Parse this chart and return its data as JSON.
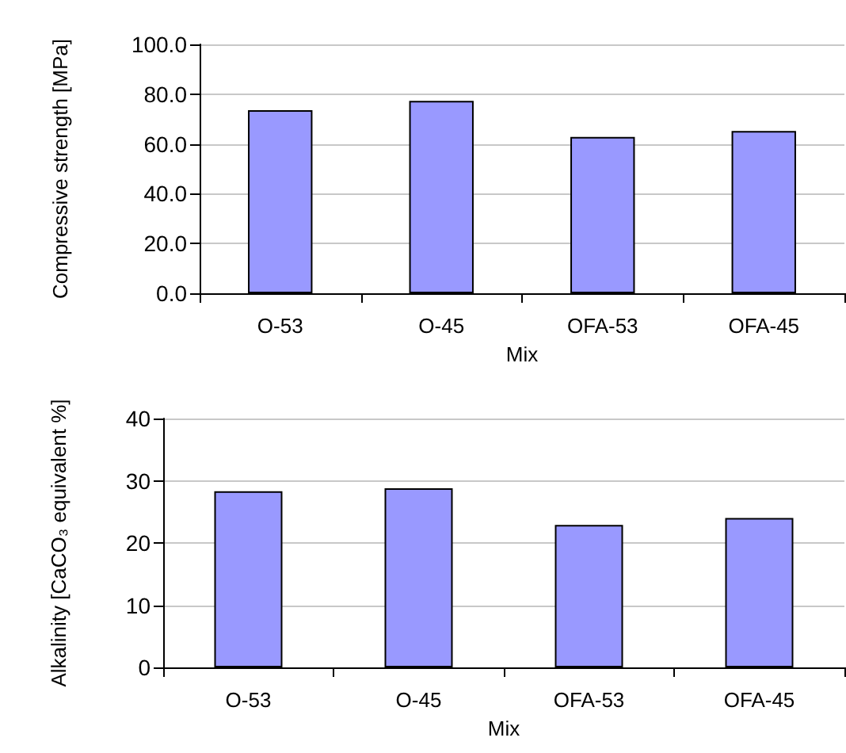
{
  "chart_data": [
    {
      "type": "bar",
      "categories": [
        "O-53",
        "O-45",
        "OFA-53",
        "OFA-45"
      ],
      "xlabel": "Mix",
      "ylabel": "Compressive strength [MPa]",
      "values": [
        73.6,
        77.3,
        62.8,
        65.2
      ],
      "color": "#9999ff",
      "ylim": [
        0,
        100
      ],
      "yticks": [
        {
          "value": 0,
          "label": "0.0"
        },
        {
          "value": 20,
          "label": "20.0"
        },
        {
          "value": 40,
          "label": "40.0"
        },
        {
          "value": 60,
          "label": "60.0"
        },
        {
          "value": 80,
          "label": "80.0"
        },
        {
          "value": 100,
          "label": "100.0"
        }
      ],
      "grid": "y"
    },
    {
      "type": "bar",
      "categories": [
        "O-53",
        "O-45",
        "OFA-53",
        "OFA-45"
      ],
      "xlabel": "Mix",
      "ylabel": "Alkalinity [CaCO₃ equivalent %]",
      "values": [
        28.3,
        28.8,
        22.9,
        24.0
      ],
      "color": "#9999ff",
      "ylim": [
        0,
        40
      ],
      "yticks": [
        0,
        10,
        20,
        30,
        40
      ],
      "grid": "y"
    }
  ]
}
